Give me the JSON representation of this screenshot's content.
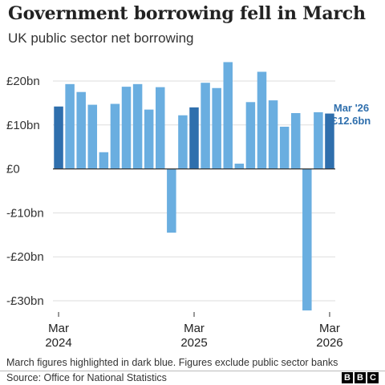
{
  "title": "Government borrowing fell in March",
  "subtitle": "UK public sector net borrowing",
  "footnote": "March figures highlighted in dark blue. Figures exclude public sector banks",
  "source": "Source: Office for National Statistics",
  "logo": [
    "B",
    "B",
    "C"
  ],
  "colors": {
    "light_bar": "#6aaee0",
    "dark_bar": "#2f6fad",
    "annotation": "#2f6fad",
    "grid": "#dddddd",
    "axis": "#333333"
  },
  "annotation": {
    "line1": "Mar '26",
    "line2": "£12.6bn"
  },
  "chart_data": {
    "type": "bar",
    "ylim": [
      -33,
      25
    ],
    "yticks": [
      {
        "value": 20,
        "label": "£20bn"
      },
      {
        "value": 10,
        "label": "£10bn"
      },
      {
        "value": 0,
        "label": "£0"
      },
      {
        "value": -10,
        "label": "-£10bn"
      },
      {
        "value": -20,
        "label": "-£20bn"
      },
      {
        "value": -30,
        "label": "-£30bn"
      }
    ],
    "xticks": [
      {
        "index": 0,
        "line1": "Mar",
        "line2": "2024"
      },
      {
        "index": 12,
        "line1": "Mar",
        "line2": "2025"
      },
      {
        "index": 24,
        "line1": "Mar",
        "line2": "2026"
      }
    ],
    "highlight_indices": [
      0,
      12,
      24
    ],
    "values": [
      14.2,
      19.3,
      17.5,
      14.6,
      3.8,
      14.8,
      18.7,
      19.3,
      13.5,
      18.6,
      -14.5,
      12.2,
      14.0,
      19.6,
      18.4,
      24.3,
      1.2,
      15.2,
      22.1,
      15.6,
      9.6,
      12.7,
      -32.2,
      12.9,
      12.6
    ],
    "grid": true
  }
}
